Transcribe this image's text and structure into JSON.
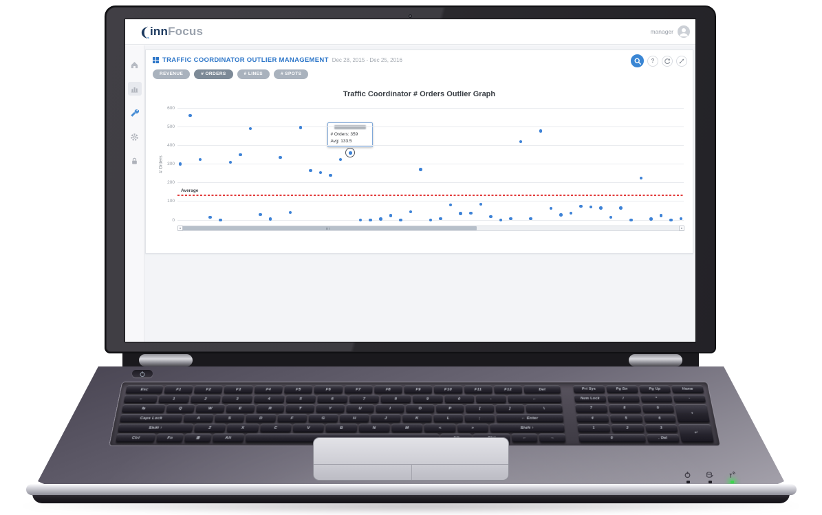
{
  "header": {
    "logo_primary": "inn",
    "logo_secondary": "Focus",
    "user": "manager"
  },
  "sidebar": {
    "items": [
      {
        "icon": "home-icon",
        "active": false
      },
      {
        "icon": "bar-chart-icon",
        "active": false
      },
      {
        "icon": "wrench-icon",
        "active": true
      },
      {
        "icon": "gear-icon",
        "active": false
      },
      {
        "icon": "lock-icon",
        "active": false
      }
    ]
  },
  "page": {
    "title": "TRAFFIC COORDINATOR OUTLIER MANAGEMENT",
    "date_range": "Dec 28, 2015 - Dec 25, 2016",
    "metric_tabs": [
      {
        "label": "REVENUE",
        "selected": false
      },
      {
        "label": "# ORDERS",
        "selected": true
      },
      {
        "label": "# LINES",
        "selected": false
      },
      {
        "label": "# SPOTS",
        "selected": false
      }
    ],
    "toolbar_icons": [
      "search-icon",
      "help-icon",
      "refresh-icon",
      "expand-icon"
    ]
  },
  "chart_data": {
    "type": "scatter",
    "title": "Traffic Coordinator # Orders Outlier Graph",
    "ylabel": "# Orders",
    "ylim": [
      0,
      600
    ],
    "yticks": [
      600,
      500,
      400,
      300,
      200,
      100,
      0
    ],
    "grid": true,
    "legend": "none",
    "point_color": "#3d82d6",
    "values": [
      300,
      560,
      325,
      15,
      0,
      310,
      350,
      490,
      30,
      5,
      335,
      40,
      495,
      265,
      255,
      240,
      325,
      359,
      0,
      0,
      5,
      25,
      0,
      45,
      270,
      0,
      8,
      81,
      35,
      37,
      85,
      18,
      0,
      7,
      420,
      8,
      477,
      63,
      28,
      37,
      74,
      70,
      64,
      14,
      64,
      0,
      225,
      5,
      24,
      0,
      8
    ],
    "selected_index": 17,
    "average_line": {
      "label": "Average",
      "value": 133.5,
      "color": "#e23b3b"
    },
    "tooltip": {
      "orders": "# Orders: 359",
      "avg": "Avg: 133.5"
    }
  },
  "scrollbar": {
    "thumb_start": 0.0,
    "thumb_end": 0.59
  },
  "keyboard": {
    "rows": [
      [
        "Esc",
        "F1",
        "F2",
        "F3",
        "F4",
        "F5",
        "F6",
        "F7",
        "F8",
        "F9",
        "F10",
        "F11",
        "F12",
        "Del"
      ],
      [
        "~",
        "1",
        "2",
        "3",
        "4",
        "5",
        "6",
        "7",
        "8",
        "9",
        "0",
        "-",
        "←"
      ],
      [
        "⇆",
        "Q",
        "W",
        "E",
        "R",
        "T",
        "Y",
        "U",
        "I",
        "O",
        "P",
        "[",
        "]",
        "\\"
      ],
      [
        "Caps Lock",
        "A",
        "S",
        "D",
        "F",
        "G",
        "H",
        "J",
        "K",
        "L",
        ";",
        "← Enter"
      ],
      [
        "Shift ↑",
        "Z",
        "X",
        "C",
        "V",
        "B",
        "N",
        "M",
        "<",
        ">",
        "Shift ↑"
      ],
      [
        "Ctrl",
        "Fn",
        "⊞",
        "Alt",
        "",
        "Alt",
        "Ctrl",
        "←",
        "→"
      ]
    ],
    "numpad": [
      "Prt Sys",
      "Pg Dn",
      "Pg Up",
      "Home",
      "Num Lock",
      "/",
      "*",
      "-",
      "7",
      "8",
      "9",
      "+",
      "4",
      "5",
      "6",
      "1",
      "2",
      "3",
      "↵",
      "0",
      ". Del"
    ]
  }
}
